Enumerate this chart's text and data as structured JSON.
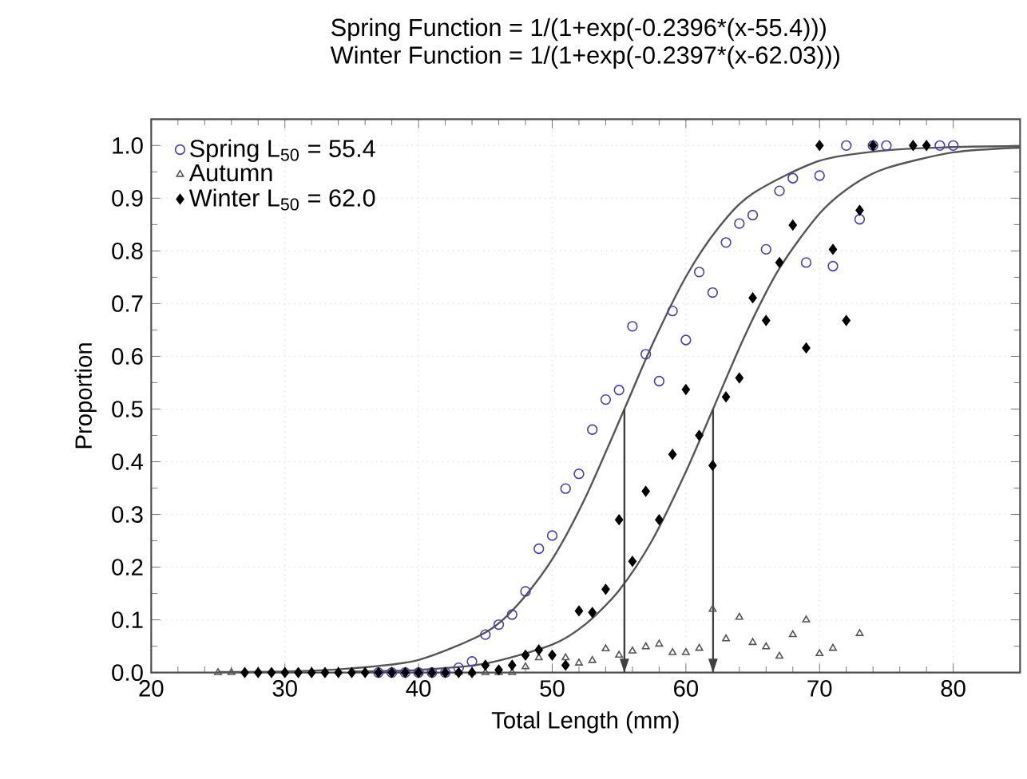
{
  "chart_data": {
    "type": "scatter",
    "title": "Spring Function = 1/(1+exp(-0.2396*(x-55.4)))",
    "subtitle": "Winter Function = 1/(1+exp(-0.2397*(x-62.03)))",
    "xlabel": "Total Length  (mm)",
    "ylabel": "Proportion",
    "xlim": [
      20,
      85
    ],
    "ylim": [
      0,
      1.05
    ],
    "xticks": [
      20,
      30,
      40,
      50,
      60,
      70,
      80
    ],
    "yticks": [
      {
        "value": 0,
        "label": "0.0"
      },
      0.1,
      0.2,
      0.3,
      0.4,
      0.5,
      0.6,
      0.7,
      0.8,
      0.9,
      {
        "value": 1,
        "label": "1.0"
      }
    ],
    "grid": true,
    "legend": "top left",
    "series": [
      {
        "name": "Spring  L$_{50}$ = 55.4",
        "marker": "circle",
        "color": "#4a40a8",
        "x": [
          37,
          38,
          39,
          40,
          41,
          42,
          43,
          44,
          45,
          46,
          47,
          48,
          49,
          50,
          51,
          52,
          53,
          54,
          55,
          56,
          57,
          58,
          59,
          60,
          61,
          62,
          63,
          64,
          65,
          66,
          67,
          68,
          69,
          70,
          71,
          72,
          73,
          74,
          75,
          79,
          80
        ],
        "values": [
          0,
          0,
          0,
          0,
          0,
          0,
          0.009,
          0.021,
          0.072,
          0.091,
          0.11,
          0.154,
          0.235,
          0.26,
          0.349,
          0.377,
          0.461,
          0.518,
          0.536,
          0.657,
          0.604,
          0.553,
          0.686,
          0.631,
          0.76,
          0.721,
          0.816,
          0.852,
          0.868,
          0.803,
          0.914,
          0.938,
          0.778,
          0.943,
          0.771,
          1,
          0.86,
          1,
          1,
          1,
          1
        ]
      },
      {
        "name": "Autumn",
        "marker": "triangle",
        "color": "#555555",
        "x": [
          25,
          26,
          40,
          41,
          42,
          43,
          44,
          45,
          46,
          47,
          48,
          49,
          50,
          51,
          52,
          53,
          54,
          55,
          56,
          57,
          58,
          59,
          60,
          61,
          62,
          63,
          64,
          65,
          66,
          67,
          68,
          69,
          70,
          71,
          73
        ],
        "values": [
          0,
          0,
          0,
          0,
          0,
          0,
          0,
          0,
          0,
          0,
          0.011,
          0.028,
          null,
          0.028,
          0.018,
          0.023,
          0.045,
          0.033,
          0.041,
          0.049,
          0.054,
          0.038,
          0.038,
          0.046,
          0.12,
          0.064,
          0.105,
          0.057,
          0.049,
          0.031,
          0.072,
          0.1,
          0.036,
          0.046,
          0.074
        ]
      },
      {
        "name": "Winter  L$_{50}$ = 62.0",
        "marker": "diamond",
        "color": "#000000",
        "x": [
          27,
          28,
          29,
          30,
          31,
          32,
          33,
          34,
          35,
          36,
          37,
          38,
          39,
          40,
          41,
          42,
          43,
          44,
          45,
          46,
          47,
          48,
          49,
          50,
          51,
          52,
          53,
          54,
          55,
          56,
          57,
          58,
          59,
          60,
          61,
          62,
          63,
          64,
          65,
          66,
          67,
          68,
          69,
          70,
          71,
          72,
          73,
          74,
          77,
          78
        ],
        "values": [
          0,
          0,
          0,
          0,
          0,
          0,
          0,
          0,
          0,
          0,
          0,
          0,
          0,
          0,
          0,
          0,
          0,
          0,
          0.014,
          0.005,
          0.014,
          0.033,
          0.043,
          0.033,
          0.014,
          0.117,
          0.114,
          0.158,
          0.29,
          0.211,
          0.344,
          0.29,
          0.414,
          0.537,
          0.45,
          0.393,
          0.523,
          0.559,
          0.711,
          0.668,
          0.778,
          0.849,
          0.616,
          1,
          0.803,
          0.668,
          0.877,
          1,
          1,
          1
        ]
      },
      {
        "type": "line",
        "color": "#555555",
        "x": [
          25,
          30,
          35,
          40,
          45,
          47.5,
          50,
          52.5,
          55.4,
          57.5,
          60,
          62.5,
          65,
          70,
          75,
          80,
          85
        ],
        "values": [
          0.001,
          0.002,
          0.008,
          0.024,
          0.076,
          0.131,
          0.215,
          0.333,
          0.5,
          0.623,
          0.751,
          0.846,
          0.909,
          0.971,
          0.991,
          0.997,
          0.999
        ]
      },
      {
        "type": "line",
        "color": "#555555",
        "x": [
          35,
          40,
          45,
          50,
          52.5,
          55,
          57.5,
          60,
          62.03,
          64.5,
          67,
          70,
          72.5,
          75,
          80,
          85
        ],
        "values": [
          0.002,
          0.005,
          0.017,
          0.053,
          0.092,
          0.156,
          0.252,
          0.381,
          0.5,
          0.644,
          0.767,
          0.871,
          0.925,
          0.957,
          0.987,
          0.996
        ]
      }
    ],
    "ref_lines": [
      {
        "axis": "x",
        "value": 55.4,
        "color": "#404040"
      },
      {
        "axis": "x",
        "value": 62.03,
        "color": "#404040"
      }
    ]
  }
}
